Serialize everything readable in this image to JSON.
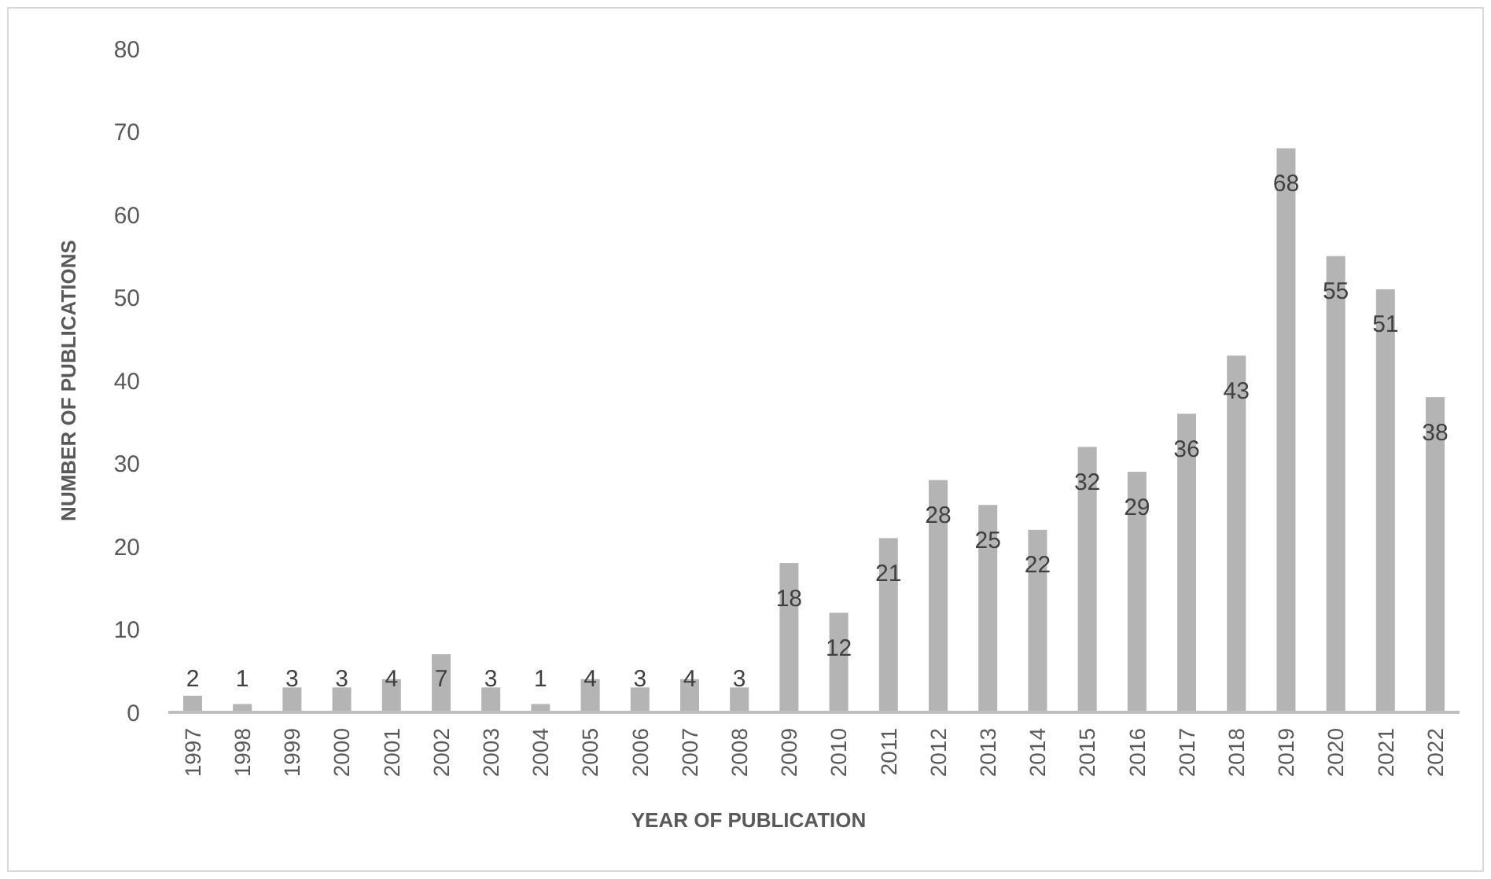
{
  "chart_data": {
    "type": "bar",
    "xlabel": "YEAR OF PUBLICATION",
    "ylabel": "NUMBER OF PUBLICATIONS",
    "categories": [
      "1997",
      "1998",
      "1999",
      "2000",
      "2001",
      "2002",
      "2003",
      "2004",
      "2005",
      "2006",
      "2007",
      "2008",
      "2009",
      "2010",
      "2011",
      "2012",
      "2013",
      "2014",
      "2015",
      "2016",
      "2017",
      "2018",
      "2019",
      "2020",
      "2021",
      "2022"
    ],
    "values": [
      2,
      1,
      3,
      3,
      4,
      7,
      3,
      1,
      4,
      3,
      4,
      3,
      18,
      12,
      21,
      28,
      25,
      22,
      32,
      29,
      36,
      43,
      68,
      55,
      51,
      38
    ],
    "color": "#b4b4b4",
    "ylim": [
      0,
      80
    ],
    "yticks": [
      0,
      10,
      20,
      30,
      40,
      50,
      60,
      70,
      80
    ],
    "grid": false,
    "data_labels": true
  }
}
